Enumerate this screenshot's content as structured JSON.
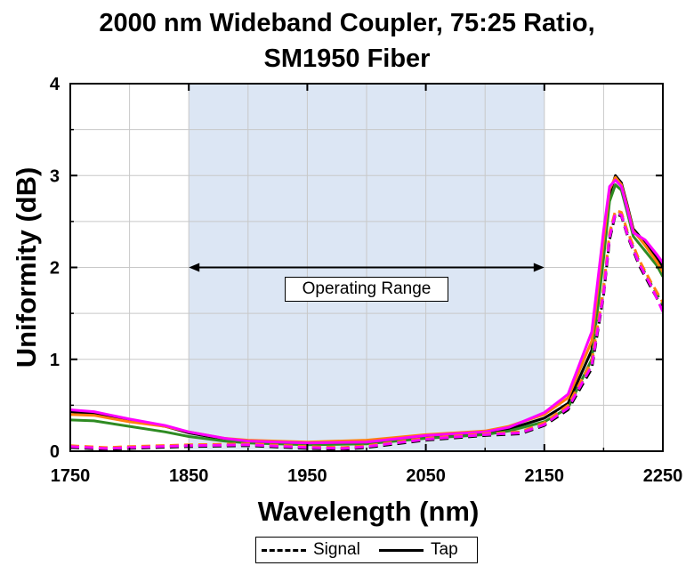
{
  "chart_data": {
    "type": "line",
    "title": [
      "2000 nm Wideband Coupler, 75:25 Ratio,",
      "SM1950 Fiber"
    ],
    "xlabel": "Wavelength (nm)",
    "ylabel": "Uniformity (dB)",
    "xlim": [
      1750,
      2250
    ],
    "ylim": [
      0,
      4
    ],
    "x_ticks": [
      "1750",
      "1850",
      "1950",
      "2050",
      "2150",
      "2250"
    ],
    "y_ticks": [
      "0",
      "1",
      "2",
      "3",
      "4"
    ],
    "grid": true,
    "shaded_region": {
      "x_start": 1850,
      "x_end": 2150,
      "color": "#dce6f4"
    },
    "annotation": {
      "text": "Operating Range",
      "x_start": 1850,
      "x_end": 2150,
      "y": 2.0
    },
    "legend": [
      {
        "label": "Signal",
        "style": "dashed"
      },
      {
        "label": "Tap",
        "style": "solid"
      }
    ],
    "legend_position": "bottom-center",
    "series": [
      {
        "style": "solid",
        "color": "#000000",
        "x": [
          1750,
          1770,
          1800,
          1830,
          1850,
          1880,
          1900,
          1950,
          2000,
          2050,
          2100,
          2120,
          2150,
          2170,
          2190,
          2200,
          2205,
          2210,
          2215,
          2220,
          2225,
          2235,
          2245,
          2250
        ],
        "y": [
          0.43,
          0.41,
          0.34,
          0.27,
          0.2,
          0.13,
          0.11,
          0.08,
          0.09,
          0.15,
          0.2,
          0.24,
          0.36,
          0.52,
          1.1,
          2.2,
          2.8,
          3.0,
          2.92,
          2.68,
          2.42,
          2.27,
          2.1,
          2.0
        ]
      },
      {
        "style": "solid",
        "color": "#2e8b22",
        "x": [
          1750,
          1770,
          1800,
          1830,
          1850,
          1880,
          1900,
          1950,
          2000,
          2050,
          2100,
          2120,
          2150,
          2170,
          2190,
          2200,
          2205,
          2210,
          2215,
          2220,
          2225,
          2235,
          2245,
          2250
        ],
        "y": [
          0.34,
          0.33,
          0.27,
          0.21,
          0.16,
          0.11,
          0.09,
          0.07,
          0.08,
          0.14,
          0.18,
          0.22,
          0.32,
          0.47,
          1.0,
          2.1,
          2.72,
          2.9,
          2.84,
          2.6,
          2.34,
          2.18,
          2.02,
          1.9
        ]
      },
      {
        "style": "solid",
        "color": "#ff7f0e",
        "x": [
          1750,
          1770,
          1800,
          1830,
          1850,
          1880,
          1900,
          1950,
          2000,
          2050,
          2100,
          2120,
          2150,
          2170,
          2190,
          2200,
          2205,
          2210,
          2215,
          2220,
          2225,
          2235,
          2245,
          2250
        ],
        "y": [
          0.4,
          0.39,
          0.32,
          0.27,
          0.21,
          0.14,
          0.12,
          0.1,
          0.12,
          0.18,
          0.22,
          0.27,
          0.4,
          0.58,
          1.2,
          2.3,
          2.85,
          2.98,
          2.9,
          2.66,
          2.4,
          2.24,
          2.06,
          1.95
        ]
      },
      {
        "style": "solid",
        "color": "#ff00ff",
        "x": [
          1750,
          1770,
          1800,
          1830,
          1850,
          1880,
          1900,
          1950,
          2000,
          2050,
          2100,
          2120,
          2150,
          2170,
          2190,
          2200,
          2205,
          2210,
          2215,
          2220,
          2225,
          2235,
          2245,
          2250
        ],
        "y": [
          0.45,
          0.43,
          0.35,
          0.28,
          0.21,
          0.14,
          0.11,
          0.09,
          0.1,
          0.17,
          0.21,
          0.26,
          0.42,
          0.62,
          1.3,
          2.4,
          2.88,
          2.95,
          2.88,
          2.64,
          2.38,
          2.3,
          2.14,
          2.05
        ]
      },
      {
        "style": "dashed",
        "color": "#000000",
        "x": [
          1750,
          1780,
          1800,
          1850,
          1900,
          1950,
          1980,
          2000,
          2050,
          2100,
          2130,
          2150,
          2170,
          2190,
          2200,
          2205,
          2210,
          2215,
          2220,
          2230,
          2240,
          2250
        ],
        "y": [
          0.04,
          0.02,
          0.03,
          0.05,
          0.06,
          0.03,
          0.02,
          0.04,
          0.12,
          0.17,
          0.19,
          0.28,
          0.45,
          0.9,
          1.7,
          2.3,
          2.58,
          2.56,
          2.35,
          2.02,
          1.78,
          1.55
        ]
      },
      {
        "style": "dashed",
        "color": "#2e8b22",
        "x": [
          1750,
          1780,
          1800,
          1850,
          1900,
          1950,
          1980,
          2000,
          2050,
          2100,
          2130,
          2150,
          2170,
          2190,
          2200,
          2205,
          2210,
          2215,
          2220,
          2230,
          2240,
          2250
        ],
        "y": [
          0.05,
          0.03,
          0.04,
          0.06,
          0.07,
          0.04,
          0.03,
          0.05,
          0.13,
          0.18,
          0.2,
          0.3,
          0.48,
          0.95,
          1.75,
          2.35,
          2.6,
          2.58,
          2.38,
          2.06,
          1.82,
          1.6
        ]
      },
      {
        "style": "dashed",
        "color": "#ff7f0e",
        "x": [
          1750,
          1780,
          1800,
          1850,
          1900,
          1950,
          1980,
          2000,
          2050,
          2100,
          2130,
          2150,
          2170,
          2190,
          2200,
          2205,
          2210,
          2215,
          2220,
          2230,
          2240,
          2250
        ],
        "y": [
          0.06,
          0.04,
          0.05,
          0.07,
          0.08,
          0.05,
          0.04,
          0.06,
          0.14,
          0.19,
          0.21,
          0.31,
          0.5,
          0.98,
          1.78,
          2.38,
          2.62,
          2.6,
          2.4,
          2.08,
          1.84,
          1.62
        ]
      },
      {
        "style": "dashed",
        "color": "#ff00ff",
        "x": [
          1750,
          1780,
          1800,
          1850,
          1900,
          1950,
          1980,
          2000,
          2050,
          2100,
          2130,
          2150,
          2170,
          2190,
          2200,
          2205,
          2210,
          2215,
          2220,
          2230,
          2240,
          2250
        ],
        "y": [
          0.05,
          0.03,
          0.04,
          0.06,
          0.07,
          0.04,
          0.03,
          0.05,
          0.13,
          0.18,
          0.2,
          0.29,
          0.47,
          0.93,
          1.72,
          2.33,
          2.59,
          2.57,
          2.36,
          2.04,
          1.8,
          1.52
        ]
      }
    ]
  }
}
